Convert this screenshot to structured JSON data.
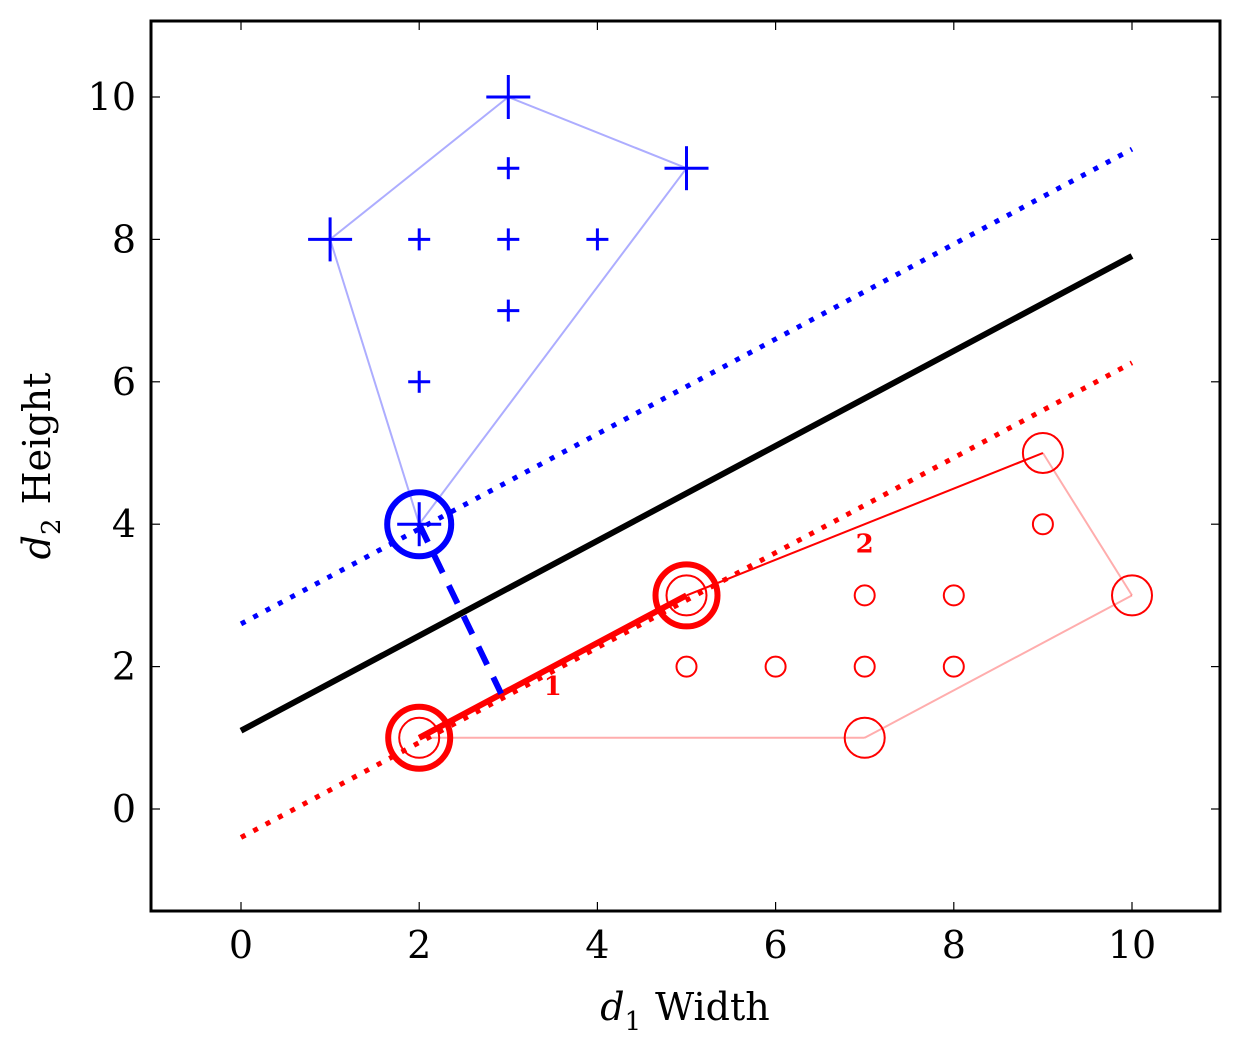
{
  "chart_data": {
    "type": "scatter",
    "xlabel": {
      "var": "d",
      "sub": "1",
      "text": "Width"
    },
    "ylabel": {
      "var": "d",
      "sub": "2",
      "text": "Height"
    },
    "xlim": [
      -1,
      11
    ],
    "ylim": [
      -1.4,
      11
    ],
    "xticks": [
      0,
      2,
      4,
      6,
      8,
      10
    ],
    "yticks": [
      0,
      2,
      4,
      6,
      8,
      10
    ],
    "grid": false,
    "colors": {
      "positive": "#0000ff",
      "negative": "#ff0000",
      "boundary": "#000000"
    },
    "series": [
      {
        "marker": "plus",
        "color": "#0000ff",
        "points": [
          [
            2,
            6
          ],
          [
            2,
            8
          ],
          [
            3,
            8
          ],
          [
            3,
            9
          ],
          [
            3,
            7
          ],
          [
            4,
            8
          ]
        ],
        "hull_vertices": [
          [
            1,
            8
          ],
          [
            3,
            10
          ],
          [
            5,
            9
          ],
          [
            2,
            4
          ]
        ],
        "support_vectors": [
          [
            2,
            4
          ]
        ]
      },
      {
        "marker": "circle",
        "color": "#ff0000",
        "points": [
          [
            5,
            2
          ],
          [
            6,
            2
          ],
          [
            7,
            2
          ],
          [
            8,
            2
          ],
          [
            7,
            3
          ],
          [
            8,
            3
          ],
          [
            9,
            4
          ]
        ],
        "hull_vertices": [
          [
            2,
            1
          ],
          [
            7,
            1
          ],
          [
            10,
            3
          ],
          [
            9,
            5
          ],
          [
            5,
            3
          ]
        ],
        "support_vectors": [
          [
            2,
            1
          ],
          [
            5,
            3
          ]
        ]
      }
    ],
    "lines": [
      {
        "kind": "decision-boundary",
        "style": "solid",
        "color": "#000000",
        "slope": 0.6667,
        "intercept": 1.1,
        "x": [
          0,
          10
        ]
      },
      {
        "kind": "margin-positive",
        "style": "dotted",
        "color": "#0000ff",
        "slope": 0.6667,
        "intercept": 2.6,
        "x": [
          0,
          10
        ]
      },
      {
        "kind": "margin-negative",
        "style": "dotted",
        "color": "#ff0000",
        "slope": 0.6667,
        "intercept": -0.4,
        "x": [
          0,
          10
        ]
      }
    ],
    "annotations": [
      {
        "kind": "support-segment",
        "from": [
          2,
          1
        ],
        "to": [
          5,
          3
        ],
        "color": "#ff0000",
        "label": "1",
        "label_at": [
          3.5,
          1.6
        ]
      },
      {
        "kind": "hull-edge",
        "from": [
          5,
          3
        ],
        "to": [
          9,
          5
        ],
        "color": "#ff0000",
        "label": "2",
        "label_at": [
          7,
          3.6
        ]
      },
      {
        "kind": "margin-distance",
        "from": [
          2,
          4
        ],
        "to": [
          2.92,
          1.62
        ],
        "style": "dashed",
        "color": "#0000ff"
      }
    ]
  }
}
